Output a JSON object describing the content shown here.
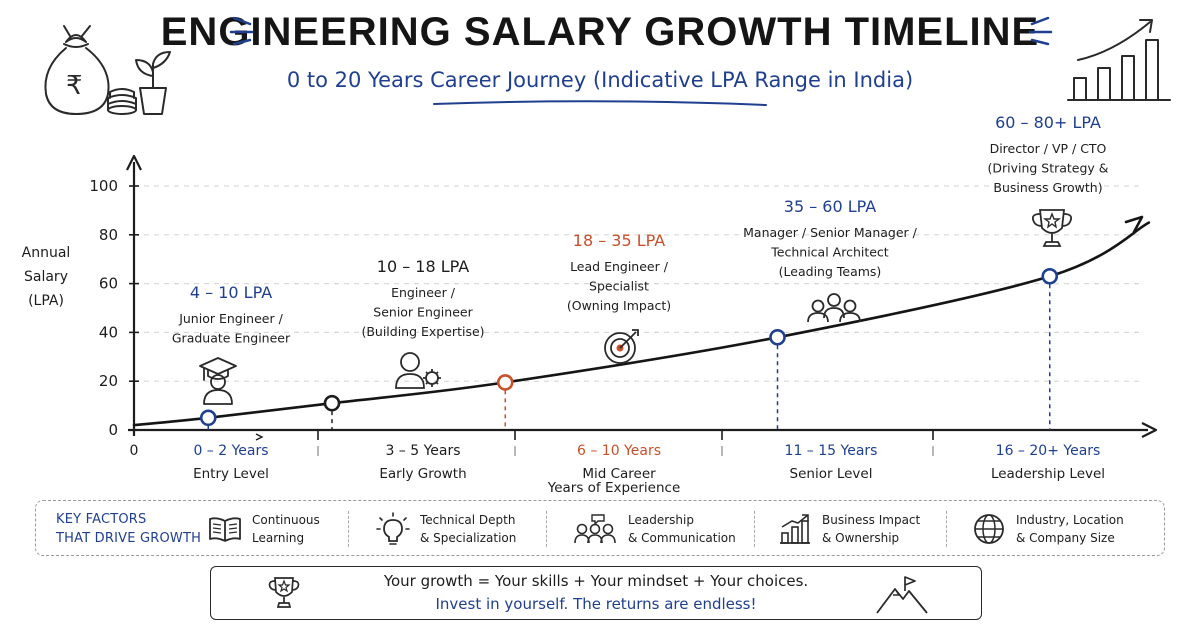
{
  "header": {
    "title": "ENGINEERING SALARY GROWTH TIMELINE",
    "subtitle": "0 to 20 Years Career Journey (Indicative LPA Range in India)"
  },
  "colors": {
    "blue": "#1f3f8f",
    "orange": "#c8502a",
    "ink": "#1d1d1d",
    "grid": "#d9d9d9"
  },
  "chart_data": {
    "type": "line",
    "title": "ENGINEERING SALARY GROWTH TIMELINE",
    "ylabel": "Annual Salary (LPA)",
    "xlabel": "Years of Experience",
    "ylim": [
      0,
      100
    ],
    "xlim": [
      0,
      20
    ],
    "y_ticks": [
      "0",
      "20",
      "40",
      "60",
      "80",
      "100"
    ],
    "x_origin_label": "0",
    "grid": "horizontal dashed",
    "curve": [
      {
        "x": 0,
        "y": 2
      },
      {
        "x": 1.5,
        "y": 5
      },
      {
        "x": 4,
        "y": 11
      },
      {
        "x": 7.5,
        "y": 19.5
      },
      {
        "x": 13,
        "y": 38
      },
      {
        "x": 18.5,
        "y": 63
      },
      {
        "x": 20.5,
        "y": 85
      }
    ],
    "milestones": [
      {
        "x": 1.5,
        "y": 5,
        "range": "4 – 10 LPA",
        "role": [
          "Junior Engineer /",
          "Graduate Engineer"
        ],
        "period": "0 – 2 Years",
        "stage": "Entry Level",
        "color": "blue",
        "icon": "graduate-icon"
      },
      {
        "x": 4,
        "y": 11,
        "range": "10 – 18 LPA",
        "role": [
          "Engineer /",
          "Senior Engineer",
          "(Building Expertise)"
        ],
        "period": "3 – 5 Years",
        "stage": "Early Growth",
        "color": "ink",
        "icon": "engineer-gear-icon"
      },
      {
        "x": 7.5,
        "y": 19.5,
        "range": "18 – 35 LPA",
        "role": [
          "Lead Engineer /",
          "Specialist",
          "(Owning Impact)"
        ],
        "period": "6 – 10 Years",
        "stage": "Mid Career",
        "color": "orange",
        "icon": "target-icon"
      },
      {
        "x": 13,
        "y": 38,
        "range": "35 – 60 LPA",
        "role": [
          "Manager / Senior Manager /",
          "Technical Architect",
          "(Leading Teams)"
        ],
        "period": "11 – 15 Years",
        "stage": "Senior Level",
        "color": "blue",
        "icon": "team-icon"
      },
      {
        "x": 18.5,
        "y": 63,
        "range": "60 – 80+ LPA",
        "role": [
          "Director / VP / CTO",
          "(Driving Strategy &",
          "Business Growth)"
        ],
        "period": "16 – 20+ Years",
        "stage": "Leadership Level",
        "color": "blue",
        "icon": "trophy-icon"
      }
    ]
  },
  "factors": {
    "title_line1": "KEY FACTORS",
    "title_line2": "THAT DRIVE GROWTH",
    "items": [
      {
        "line1": "Continuous",
        "line2": "Learning",
        "icon": "book-icon"
      },
      {
        "line1": "Technical Depth",
        "line2": "& Specialization",
        "icon": "lightbulb-icon"
      },
      {
        "line1": "Leadership",
        "line2": "& Communication",
        "icon": "people-icon"
      },
      {
        "line1": "Business Impact",
        "line2": "& Ownership",
        "icon": "bar-growth-icon"
      },
      {
        "line1": "Industry, Location",
        "line2": "& Company Size",
        "icon": "globe-icon"
      }
    ]
  },
  "quote": {
    "line1": "Your growth = Your skills + Your mindset + Your choices.",
    "line2": "Invest in yourself. The returns are endless!"
  },
  "decor": {
    "money_bag_symbol": "₹",
    "left_icon": "money-bag-icon",
    "right_icon": "growth-chart-icon"
  }
}
